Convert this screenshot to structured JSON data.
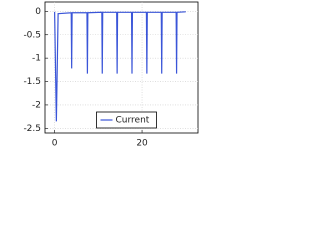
{
  "chart_data": {
    "type": "line",
    "x": [
      0,
      0.4,
      0.8,
      3.8,
      3.9,
      4.0,
      7.4,
      7.5,
      7.6,
      10.8,
      10.9,
      11.0,
      14.2,
      14.3,
      14.4,
      17.6,
      17.7,
      17.8,
      21.0,
      21.1,
      21.2,
      24.4,
      24.5,
      24.6,
      27.8,
      27.9,
      28.0,
      30
    ],
    "series": [
      {
        "name": "Current",
        "color": "#3a55d8",
        "values": [
          -0.01,
          -2.35,
          -0.05,
          -0.03,
          -1.22,
          -0.03,
          -0.03,
          -1.33,
          -0.03,
          -0.02,
          -1.33,
          -0.02,
          -0.02,
          -1.33,
          -0.02,
          -0.02,
          -1.33,
          -0.02,
          -0.02,
          -1.33,
          -0.02,
          -0.02,
          -1.33,
          -0.02,
          -0.02,
          -1.33,
          -0.02,
          -0.01
        ]
      }
    ],
    "xlim": [
      -2.2,
      32.8
    ],
    "ylim": [
      -2.6,
      0.2
    ],
    "xticks": [
      0,
      20
    ],
    "yticks": [
      0,
      -0.5,
      -1,
      -1.5,
      -2,
      -2.5
    ],
    "grid": true,
    "legend": "bottom"
  }
}
